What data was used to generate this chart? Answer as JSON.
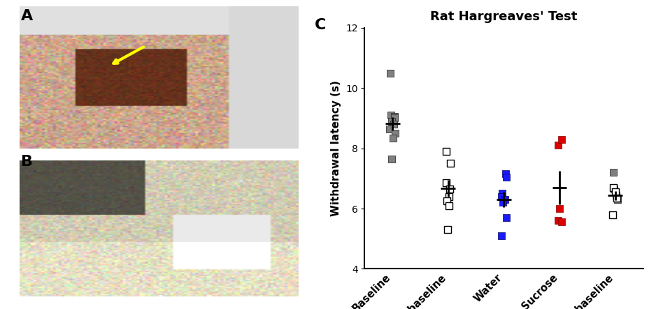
{
  "title": "Rat Hargreaves' Test",
  "panel_label_C": "C",
  "panel_label_A": "A",
  "panel_label_B": "B",
  "ylabel": "Withdrawal latency (s)",
  "ylim": [
    4,
    12
  ],
  "yticks": [
    4,
    6,
    8,
    10,
    12
  ],
  "categories": [
    "Baseline",
    "Pre-baseline",
    "Water",
    "Sucrose",
    "Post-baseline"
  ],
  "baseline_points": [
    10.5,
    9.1,
    9.05,
    9.0,
    8.9,
    8.8,
    8.65,
    8.5,
    8.35,
    7.65
  ],
  "baseline_mean": 8.82,
  "baseline_sem": 0.22,
  "prebaseline_points": [
    7.9,
    7.5,
    6.85,
    6.65,
    6.4,
    6.25,
    6.1,
    5.3
  ],
  "prebaseline_mean": 6.68,
  "prebaseline_sem": 0.28,
  "water_points": [
    7.15,
    7.05,
    6.5,
    6.4,
    6.3,
    6.2,
    5.7,
    5.1
  ],
  "water_mean": 6.3,
  "water_sem": 0.25,
  "sucrose_points": [
    8.1,
    8.3,
    6.0,
    5.6,
    5.55
  ],
  "sucrose_mean": 6.7,
  "sucrose_sem": 0.55,
  "postbaseline_points_gray": [
    7.2,
    6.65,
    6.45,
    6.3
  ],
  "postbaseline_points_open": [
    6.7,
    6.55,
    6.35,
    5.8
  ],
  "postbaseline_mean": 6.43,
  "postbaseline_sem": 0.15,
  "baseline_color": "#808080",
  "water_color": "#1a1aff",
  "sucrose_color": "#dd0000",
  "mean_line_color": "#000000",
  "background_color": "#ffffff",
  "photo_A_color": "#c8a882",
  "photo_B_color": "#d0c8b0"
}
